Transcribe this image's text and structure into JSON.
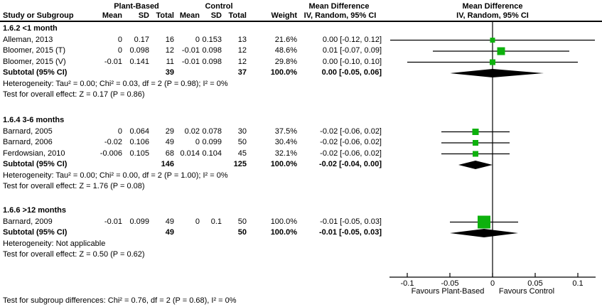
{
  "header": {
    "group_plant": "Plant-Based",
    "group_control": "Control",
    "col_study": "Study or Subgroup",
    "col_mean_plant": "Mean",
    "col_sd_plant": "SD",
    "col_total_plant": "Total",
    "col_mean_control": "Mean",
    "col_sd_control": "SD",
    "col_total_control": "Total",
    "col_weight": "Weight",
    "md_text_col_title": "Mean Difference",
    "md_text_col_subtitle": "IV, Random, 95% CI",
    "md_plot_col_title": "Mean Difference",
    "md_plot_col_subtitle": "IV, Random, 95% CI"
  },
  "axis": {
    "tick_values": [
      -0.1,
      -0.05,
      0,
      0.05,
      0.1
    ],
    "tick_labels": [
      "-0.1",
      "-0.05",
      "0",
      "0.05",
      "0.1"
    ],
    "favours_left": "Favours Plant-Based",
    "favours_right": "Favours Control"
  },
  "footer": {
    "subgroup_test": "Test for subgroup differences: Chi² = 0.76, df = 2 (P = 0.68), I² = 0%"
  },
  "colors": {
    "study_square": "#0db10d",
    "diamond": "#000000",
    "line": "#000000",
    "text": "#000000"
  },
  "chart_data": {
    "type": "scatter",
    "subtype": "forest-plot",
    "effect_measure": "Mean Difference (IV, Random, 95% CI)",
    "xlim": [
      -0.125,
      0.125
    ],
    "x_ticks": [
      -0.1,
      -0.05,
      0,
      0.05,
      0.1
    ],
    "subgroups": [
      {
        "label": "1.6.2 <1 month",
        "studies": [
          {
            "study": "Alleman, 2013",
            "plant_mean": "0",
            "plant_sd": "0.17",
            "plant_total": "16",
            "control_mean": "0",
            "control_sd": "0.153",
            "control_total": "13",
            "weight": "21.6%",
            "weight_pct": 21.6,
            "ci_text": "0.00 [-0.12, 0.12]",
            "est": 0,
            "lo": -0.12,
            "hi": 0.12
          },
          {
            "study": "Bloomer, 2015 (T)",
            "plant_mean": "0",
            "plant_sd": "0.098",
            "plant_total": "12",
            "control_mean": "-0.01",
            "control_sd": "0.098",
            "control_total": "12",
            "weight": "48.6%",
            "weight_pct": 48.6,
            "ci_text": "0.01 [-0.07, 0.09]",
            "est": 0.01,
            "lo": -0.07,
            "hi": 0.09
          },
          {
            "study": "Bloomer, 2015 (V)",
            "plant_mean": "-0.01",
            "plant_sd": "0.141",
            "plant_total": "11",
            "control_mean": "-0.01",
            "control_sd": "0.098",
            "control_total": "12",
            "weight": "29.8%",
            "weight_pct": 29.8,
            "ci_text": "0.00 [-0.10, 0.10]",
            "est": 0,
            "lo": -0.1,
            "hi": 0.1
          }
        ],
        "subtotal": {
          "label": "Subtotal (95% CI)",
          "plant_total": "39",
          "control_total": "37",
          "weight": "100.0%",
          "ci_text": "0.00 [-0.05, 0.06]",
          "est": 0,
          "lo": -0.05,
          "hi": 0.06
        },
        "heterogeneity": "Heterogeneity: Tau² = 0.00; Chi² = 0.03, df = 2 (P = 0.98); I² = 0%",
        "overall_effect": "Test for overall effect: Z = 0.17 (P = 0.86)"
      },
      {
        "label": "1.6.4 3-6 months",
        "studies": [
          {
            "study": "Barnard, 2005",
            "plant_mean": "0",
            "plant_sd": "0.064",
            "plant_total": "29",
            "control_mean": "0.02",
            "control_sd": "0.078",
            "control_total": "30",
            "weight": "37.5%",
            "weight_pct": 37.5,
            "ci_text": "-0.02 [-0.06, 0.02]",
            "est": -0.02,
            "lo": -0.06,
            "hi": 0.02
          },
          {
            "study": "Barnard, 2006",
            "plant_mean": "-0.02",
            "plant_sd": "0.106",
            "plant_total": "49",
            "control_mean": "0",
            "control_sd": "0.099",
            "control_total": "50",
            "weight": "30.4%",
            "weight_pct": 30.4,
            "ci_text": "-0.02 [-0.06, 0.02]",
            "est": -0.02,
            "lo": -0.06,
            "hi": 0.02
          },
          {
            "study": "Ferdowsian, 2010",
            "plant_mean": "-0.006",
            "plant_sd": "0.105",
            "plant_total": "68",
            "control_mean": "0.014",
            "control_sd": "0.104",
            "control_total": "45",
            "weight": "32.1%",
            "weight_pct": 32.1,
            "ci_text": "-0.02 [-0.06, 0.02]",
            "est": -0.02,
            "lo": -0.06,
            "hi": 0.02
          }
        ],
        "subtotal": {
          "label": "Subtotal (95% CI)",
          "plant_total": "146",
          "control_total": "125",
          "weight": "100.0%",
          "ci_text": "-0.02 [-0.04, 0.00]",
          "est": -0.02,
          "lo": -0.04,
          "hi": 0
        },
        "heterogeneity": "Heterogeneity: Tau² = 0.00; Chi² = 0.00, df = 2 (P = 1.00); I² = 0%",
        "overall_effect": "Test for overall effect: Z = 1.76 (P = 0.08)"
      },
      {
        "label": "1.6.6 >12 months",
        "studies": [
          {
            "study": "Barnard, 2009",
            "plant_mean": "-0.01",
            "plant_sd": "0.099",
            "plant_total": "49",
            "control_mean": "0",
            "control_sd": "0.1",
            "control_total": "50",
            "weight": "100.0%",
            "weight_pct": 100,
            "ci_text": "-0.01 [-0.05, 0.03]",
            "est": -0.01,
            "lo": -0.05,
            "hi": 0.03
          }
        ],
        "subtotal": {
          "label": "Subtotal (95% CI)",
          "plant_total": "49",
          "control_total": "50",
          "weight": "100.0%",
          "ci_text": "-0.01 [-0.05, 0.03]",
          "est": -0.01,
          "lo": -0.05,
          "hi": 0.03
        },
        "heterogeneity": "Heterogeneity: Not applicable",
        "overall_effect": "Test for overall effect: Z = 0.50 (P = 0.62)"
      }
    ]
  }
}
